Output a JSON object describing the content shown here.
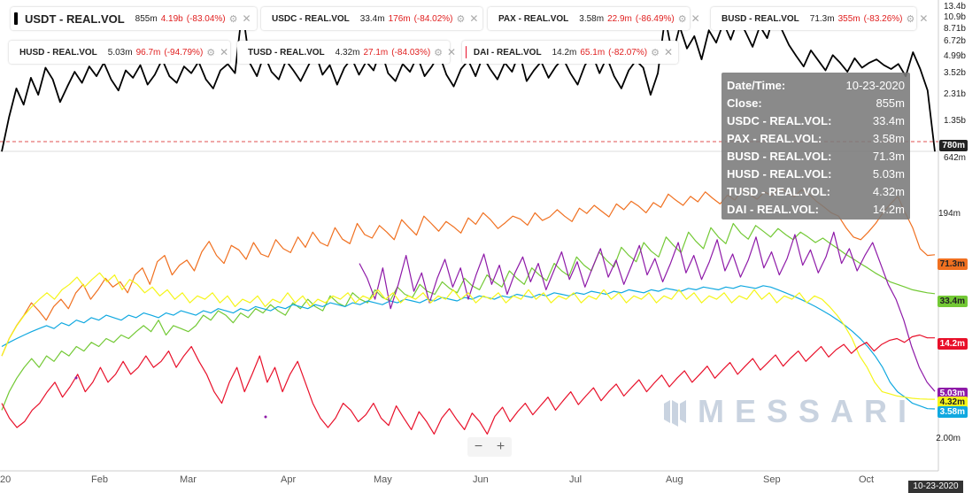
{
  "chart_data": {
    "type": "line",
    "x_months": [
      "20",
      "Feb",
      "Mar",
      "Apr",
      "May",
      "Jun",
      "Jul",
      "Aug",
      "Sep",
      "Oct"
    ],
    "hover_date": "10-23-2020",
    "top_panel": {
      "yscale": "log",
      "ticks": [
        "13.4b",
        "10.9b",
        "8.71b",
        "6.72b",
        "4.99b",
        "3.52b",
        "2.31b",
        "1.35b",
        "642m"
      ],
      "reference_tag": "780m",
      "series": [
        {
          "name": "USDT - REAL.VOL",
          "color": "#000000",
          "values": [
            0.7,
            1.4,
            2.5,
            1.8,
            3.1,
            2.2,
            3.8,
            3.0,
            1.9,
            2.6,
            3.5,
            2.8,
            3.9,
            3.2,
            4.2,
            3.0,
            2.4,
            3.6,
            3.1,
            4.0,
            2.7,
            3.3,
            4.5,
            3.2,
            2.8,
            3.9,
            3.4,
            4.3,
            3.0,
            2.5,
            3.6,
            4.1,
            3.4,
            12.5,
            4.2,
            3.2,
            5.0,
            3.5,
            3.0,
            4.4,
            3.6,
            2.9,
            3.9,
            5.2,
            3.3,
            4.0,
            2.7,
            3.8,
            4.6,
            3.3,
            4.3,
            3.6,
            5.5,
            3.4,
            2.9,
            4.1,
            3.5,
            4.8,
            3.2,
            3.9,
            5.0,
            3.3,
            2.6,
            3.7,
            4.4,
            3.2,
            4.8,
            3.7,
            3.0,
            4.2,
            3.5,
            5.2,
            2.9,
            3.6,
            4.3,
            3.1,
            3.9,
            4.6,
            3.4,
            2.7,
            4.0,
            5.0,
            3.4,
            4.7,
            3.2,
            2.5,
            3.6,
            4.4,
            3.8,
            2.2,
            3.4,
            10.5,
            4.9,
            8.7,
            5.6,
            7.2,
            4.5,
            8.1,
            6.3,
            9.4,
            6.7,
            10.2,
            7.9,
            5.8,
            8.8,
            6.9,
            11.5,
            8.2,
            6.0,
            4.8,
            3.9,
            5.4,
            4.4,
            3.6,
            4.9,
            4.2,
            3.5,
            4.6,
            3.8,
            4.2,
            4.5,
            4.0,
            3.7,
            4.1,
            3.2,
            5.2,
            3.7,
            2.4,
            0.7
          ]
        }
      ]
    },
    "bottom_panel": {
      "yscale": "log",
      "ticks": [
        "194m",
        "2.00m"
      ],
      "series": [
        {
          "name": "BUSD - REAL.VOL",
          "color": "#f07020",
          "last": "71.3m",
          "values": [
            10,
            14,
            18,
            22,
            28,
            24,
            20,
            26,
            30,
            25,
            34,
            40,
            30,
            36,
            45,
            38,
            42,
            34,
            48,
            55,
            40,
            62,
            70,
            48,
            58,
            64,
            52,
            75,
            92,
            70,
            60,
            85,
            78,
            65,
            90,
            72,
            68,
            95,
            80,
            74,
            100,
            82,
            110,
            90,
            84,
            120,
            96,
            88,
            130,
            105,
            98,
            125,
            110,
            95,
            140,
            120,
            104,
            150,
            130,
            112,
            135,
            122,
            108,
            145,
            128,
            160,
            140,
            118,
            132,
            150,
            142,
            126,
            160,
            138,
            148,
            170,
            150,
            135,
            175,
            158,
            185,
            165,
            148,
            190,
            170,
            200,
            182,
            160,
            195,
            178,
            230,
            205,
            185,
            220,
            198,
            240,
            212,
            190,
            225,
            205,
            250,
            228,
            208,
            240,
            222,
            260,
            238,
            218,
            250,
            230,
            200,
            180,
            160,
            150,
            120,
            100,
            95,
            110,
            130,
            160,
            190,
            220,
            160,
            120,
            80,
            70,
            71
          ]
        },
        {
          "name": "USDC - REAL.VOL",
          "color": "#73c935",
          "last": "33.4m",
          "values": [
            3.5,
            5,
            6.5,
            8,
            9.5,
            8,
            10,
            9,
            11,
            10,
            12,
            11,
            13,
            12,
            14,
            13,
            15,
            14,
            16,
            18,
            16,
            20,
            15,
            18,
            17,
            16,
            18,
            22,
            20,
            24,
            22,
            19,
            23,
            21,
            25,
            23,
            27,
            24,
            22,
            28,
            25,
            30,
            26,
            24,
            32,
            28,
            26,
            34,
            30,
            28,
            36,
            31,
            29,
            38,
            33,
            31,
            40,
            35,
            33,
            42,
            37,
            34,
            45,
            39,
            36,
            48,
            42,
            38,
            52,
            45,
            40,
            55,
            48,
            43,
            60,
            52,
            47,
            68,
            58,
            52,
            75,
            64,
            56,
            82,
            70,
            62,
            90,
            76,
            68,
            100,
            85,
            74,
            110,
            92,
            80,
            120,
            100,
            88,
            130,
            108,
            96,
            125,
            112,
            100,
            118,
            105,
            95,
            110,
            100,
            90,
            98,
            88,
            80,
            72,
            66,
            60,
            55,
            50,
            46,
            42,
            40,
            38,
            36,
            35,
            34,
            33.4
          ]
        },
        {
          "name": "PAX - REAL.VOL",
          "color": "#10a8e0",
          "last": "3.58m",
          "values": [
            12,
            13,
            14,
            15,
            16,
            17,
            18,
            17,
            19,
            18,
            20,
            19,
            21,
            20,
            22,
            21,
            20,
            22,
            21,
            23,
            22,
            21,
            23,
            22,
            24,
            23,
            22,
            24,
            23,
            25,
            24,
            23,
            25,
            24,
            26,
            25,
            24,
            26,
            25,
            27,
            26,
            25,
            27,
            26,
            28,
            27,
            26,
            28,
            27,
            29,
            28,
            27,
            29,
            28,
            30,
            29,
            28,
            30,
            29,
            31,
            30,
            29,
            31,
            30,
            32,
            31,
            30,
            32,
            31,
            33,
            32,
            31,
            33,
            32,
            34,
            33,
            32,
            34,
            33,
            35,
            34,
            33,
            35,
            34,
            36,
            35,
            34,
            36,
            35,
            37,
            36,
            35,
            37,
            36,
            38,
            37,
            36,
            38,
            37,
            39,
            38,
            37,
            39,
            38,
            36,
            34,
            32,
            30,
            28,
            26,
            24,
            22,
            20,
            18,
            16,
            14,
            12,
            10,
            8,
            6,
            5,
            4.5,
            4,
            3.8,
            3.6,
            3.58
          ]
        },
        {
          "name": "HUSD - REAL.VOL",
          "color": "#8e1aa8",
          "last": "5.03m",
          "values": [
            null,
            null,
            null,
            null,
            null,
            null,
            null,
            null,
            null,
            null,
            null,
            null,
            null,
            null,
            null,
            null,
            null,
            null,
            null,
            null,
            null,
            null,
            null,
            null,
            null,
            null,
            null,
            null,
            null,
            null,
            null,
            null,
            null,
            null,
            null,
            null,
            null,
            null,
            null,
            null,
            null,
            null,
            null,
            null,
            null,
            null,
            60,
            45,
            30,
            55,
            25,
            40,
            70,
            35,
            50,
            28,
            45,
            65,
            38,
            55,
            30,
            48,
            72,
            40,
            58,
            33,
            50,
            68,
            42,
            60,
            36,
            52,
            75,
            44,
            62,
            38,
            56,
            80,
            46,
            64,
            40,
            58,
            85,
            48,
            66,
            42,
            60,
            90,
            50,
            70,
            44,
            62,
            95,
            52,
            72,
            46,
            64,
            100,
            55,
            75,
            48,
            66,
            105,
            58,
            78,
            50,
            68,
            110,
            60,
            80,
            52,
            70,
            90,
            60,
            40,
            30,
            20,
            12,
            8,
            6,
            5.03
          ]
        },
        {
          "name": "TUSD - REAL.VOL",
          "color": "#f5f51a",
          "last": "4.32m",
          "values": [
            10,
            14,
            18,
            22,
            26,
            30,
            34,
            30,
            36,
            40,
            46,
            38,
            44,
            50,
            42,
            48,
            36,
            44,
            40,
            34,
            38,
            32,
            36,
            30,
            34,
            28,
            32,
            30,
            34,
            28,
            32,
            26,
            30,
            28,
            32,
            26,
            30,
            28,
            34,
            28,
            32,
            26,
            30,
            28,
            32,
            30,
            34,
            28,
            32,
            30,
            36,
            30,
            34,
            28,
            32,
            30,
            34,
            28,
            32,
            30,
            36,
            30,
            34,
            28,
            32,
            30,
            34,
            28,
            32,
            30,
            36,
            30,
            34,
            28,
            32,
            30,
            34,
            28,
            32,
            30,
            36,
            30,
            34,
            28,
            32,
            30,
            34,
            28,
            32,
            30,
            36,
            30,
            34,
            28,
            32,
            30,
            34,
            28,
            32,
            30,
            36,
            30,
            34,
            28,
            32,
            30,
            34,
            28,
            32,
            30,
            26,
            22,
            18,
            14,
            10,
            8,
            6,
            5,
            4.8,
            4.6,
            4.5,
            4.4,
            4.35,
            4.33,
            4.32
          ]
        },
        {
          "name": "DAI - REAL.VOL",
          "color": "#e8102a",
          "last": "14.2m",
          "values": [
            4,
            3,
            2.5,
            2.8,
            3.5,
            4,
            5,
            6,
            4.5,
            5.5,
            7,
            5,
            6,
            8,
            6,
            7,
            9,
            7,
            8,
            10,
            8,
            9,
            11,
            8,
            10,
            12,
            9,
            7,
            5,
            4,
            6,
            8,
            5,
            7,
            10,
            6,
            8,
            5,
            7,
            9,
            6,
            4,
            3,
            2.5,
            3,
            4,
            3.5,
            2.8,
            3.2,
            4,
            3,
            2.6,
            3.8,
            3,
            2.4,
            3.4,
            2.8,
            2.2,
            3,
            3.6,
            2.9,
            2.4,
            3.3,
            2.8,
            2.2,
            3.1,
            3.7,
            2.8,
            3.4,
            4,
            3.2,
            3.8,
            4.5,
            3.5,
            4.2,
            5,
            3.9,
            4.6,
            5.4,
            4.2,
            5,
            5.8,
            4.6,
            5.4,
            6.3,
            5,
            5.9,
            6.9,
            5.5,
            6.5,
            7.5,
            6,
            7,
            8.2,
            6.5,
            7.6,
            8.8,
            7,
            8.2,
            9.5,
            7.6,
            8.8,
            10.2,
            8.2,
            9.6,
            11,
            9,
            10.4,
            12,
            9.8,
            11.3,
            12.5,
            10.5,
            12,
            13,
            11,
            12.5,
            13.5,
            14,
            13,
            14.5,
            15,
            14.2,
            14.2
          ]
        }
      ]
    }
  },
  "legend": [
    {
      "id": "leg-usdt",
      "name": "USDT - REAL.VOL",
      "value": "855m",
      "vol": "4.19b",
      "change": "(-83.04%)",
      "color": "#000000"
    },
    {
      "id": "leg-usdc",
      "name": "USDC - REAL.VOL",
      "value": "33.4m",
      "vol": "176m",
      "change": "(-84.02%)",
      "color": "#73c935"
    },
    {
      "id": "leg-pax",
      "name": "PAX - REAL.VOL",
      "value": "3.58m",
      "vol": "22.9m",
      "change": "(-86.49%)",
      "color": "#10a8e0"
    },
    {
      "id": "leg-busd",
      "name": "BUSD - REAL.VOL",
      "value": "71.3m",
      "vol": "355m",
      "change": "(-83.26%)",
      "color": "#f07020"
    },
    {
      "id": "leg-husd",
      "name": "HUSD - REAL.VOL",
      "value": "5.03m",
      "vol": "96.7m",
      "change": "(-94.79%)",
      "color": "#8e1aa8"
    },
    {
      "id": "leg-tusd",
      "name": "TUSD - REAL.VOL",
      "value": "4.32m",
      "vol": "27.1m",
      "change": "(-84.03%)",
      "color": "#f5f51a"
    },
    {
      "id": "leg-dai",
      "name": "DAI - REAL.VOL",
      "value": "14.2m",
      "vol": "65.1m",
      "change": "(-82.07%)",
      "color": "#e8102a"
    }
  ],
  "tooltip": {
    "rows": [
      {
        "k": "Date/Time:",
        "v": "10-23-2020"
      },
      {
        "k": "Close:",
        "v": "855m"
      },
      {
        "k": "USDC - REAL.VOL:",
        "v": "33.4m"
      },
      {
        "k": "PAX - REAL.VOL:",
        "v": "3.58m"
      },
      {
        "k": "BUSD - REAL.VOL:",
        "v": "71.3m"
      },
      {
        "k": "HUSD - REAL.VOL:",
        "v": "5.03m"
      },
      {
        "k": "TUSD - REAL.VOL:",
        "v": "4.32m"
      },
      {
        "k": "DAI - REAL.VOL:",
        "v": "14.2m"
      }
    ]
  },
  "tags": [
    {
      "text": "780m",
      "bg": "#222222",
      "fg": "#ffffff"
    },
    {
      "text": "71.3m",
      "bg": "#f07020",
      "fg": "#222222"
    },
    {
      "text": "33.4m",
      "bg": "#73c935",
      "fg": "#222222"
    },
    {
      "text": "14.2m",
      "bg": "#e8102a",
      "fg": "#ffffff"
    },
    {
      "text": "5.03m",
      "bg": "#8e1aa8",
      "fg": "#ffffff"
    },
    {
      "text": "4.32m",
      "bg": "#f5f51a",
      "fg": "#222222"
    },
    {
      "text": "3.58m",
      "bg": "#10a8e0",
      "fg": "#ffffff"
    }
  ],
  "icons": {
    "gear": "gear-icon",
    "close": "close-icon",
    "logo": "messari-logo-icon"
  },
  "zoom": {
    "minus": "−",
    "plus": "+"
  },
  "watermark": "MESSARI"
}
